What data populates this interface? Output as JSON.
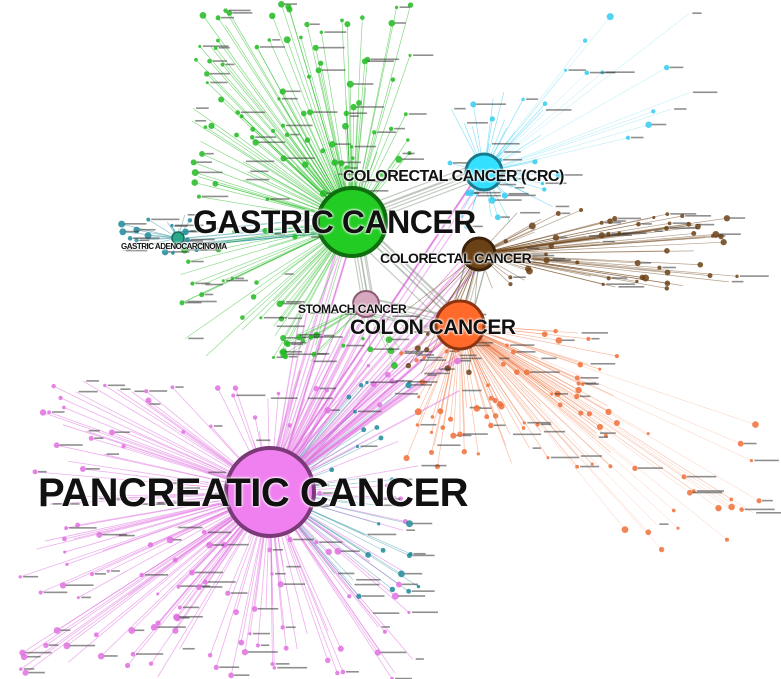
{
  "hubs": [
    {
      "id": "pancreatic",
      "label": "PANCREATIC CANCER",
      "color": "#f080f0",
      "stroke": "#7a3a78"
    },
    {
      "id": "gastric",
      "label": "GASTRIC CANCER",
      "color": "#22cc22",
      "stroke": "#0f6e0f"
    },
    {
      "id": "colon",
      "label": "COLON CANCER",
      "color": "#ff6a2a",
      "stroke": "#8a3410"
    },
    {
      "id": "crc",
      "label": "COLORECTAL CANCER (CRC)",
      "color": "#33e0ff",
      "stroke": "#1a7a8c"
    },
    {
      "id": "colorectal",
      "label": "COLORECTAL CANCER",
      "color": "#6b4216",
      "stroke": "#3a230a"
    },
    {
      "id": "stomach",
      "label": "STOMACH CANCER",
      "color": "#d8a8c0",
      "stroke": "#8a5a70"
    },
    {
      "id": "gastric_adeno",
      "label": "GASTRIC ADENOCARCINOMA",
      "color": "#2aa88a",
      "stroke": "#1a6a56"
    }
  ],
  "cluster_colors": {
    "pancreatic": "#e070e0",
    "gastric": "#22bb22",
    "colon": "#f0703a",
    "crc": "#33ccee",
    "colorectal": "#6b4216",
    "teal": "#1e8a9a"
  }
}
